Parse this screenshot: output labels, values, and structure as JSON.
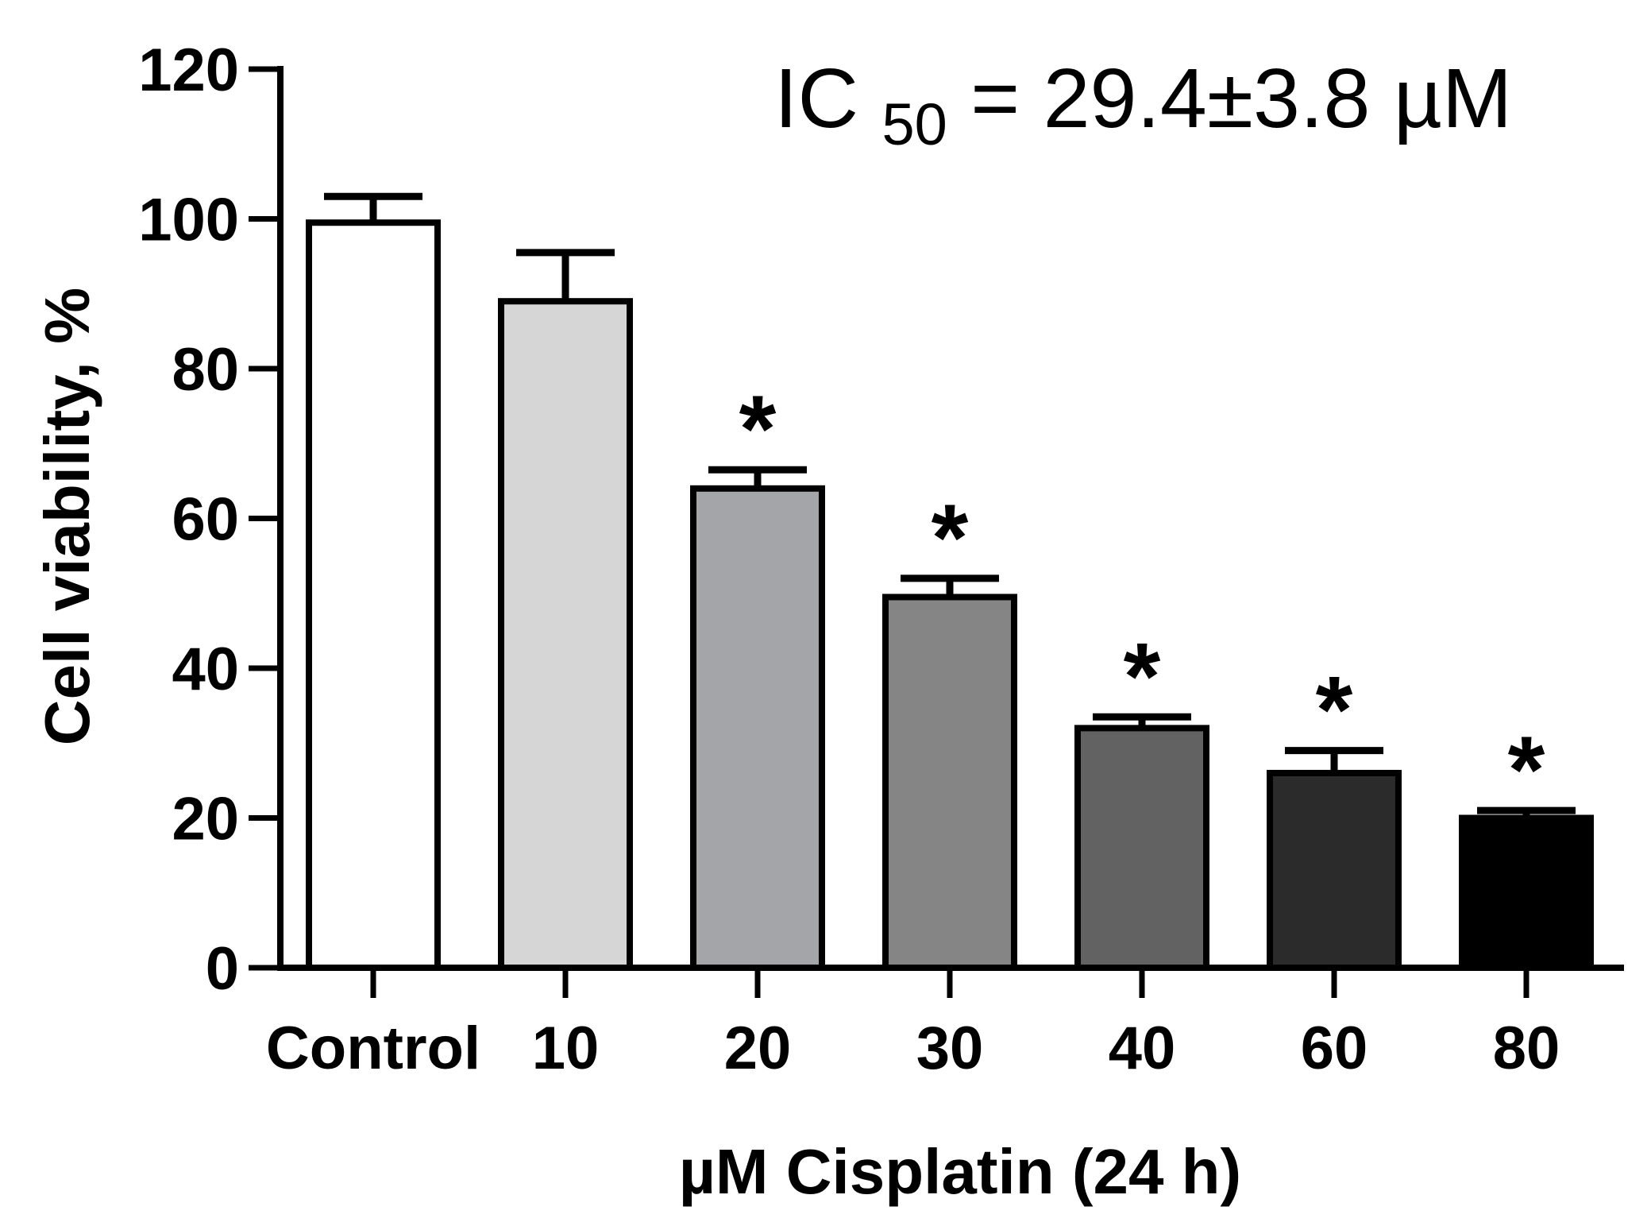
{
  "chart_data": {
    "type": "bar",
    "title": "",
    "xlabel": "µM Cisplatin (24 h)",
    "ylabel": "Cell viability, %",
    "ylim": [
      0,
      120
    ],
    "yticks": [
      "0",
      "20",
      "40",
      "60",
      "80",
      "100",
      "120"
    ],
    "categories": [
      "Control",
      "10",
      "20",
      "30",
      "40",
      "60",
      "80"
    ],
    "values": [
      99.5,
      89,
      64,
      49.5,
      32,
      26,
      20
    ],
    "errors": [
      3.5,
      6.5,
      2.5,
      2.5,
      1.5,
      3,
      1
    ],
    "bar_colors": [
      "#ffffff",
      "#d6d6d7",
      "#a4a5a8",
      "#858585",
      "#626262",
      "#2b2b2b",
      "#000000"
    ],
    "significance": [
      "",
      "",
      "*",
      "*",
      "*",
      "*",
      "*"
    ],
    "annotation": {
      "prefix": "IC",
      "subscript": "50",
      "suffix": " = 29.4±3.8 µM"
    },
    "grid": false
  }
}
